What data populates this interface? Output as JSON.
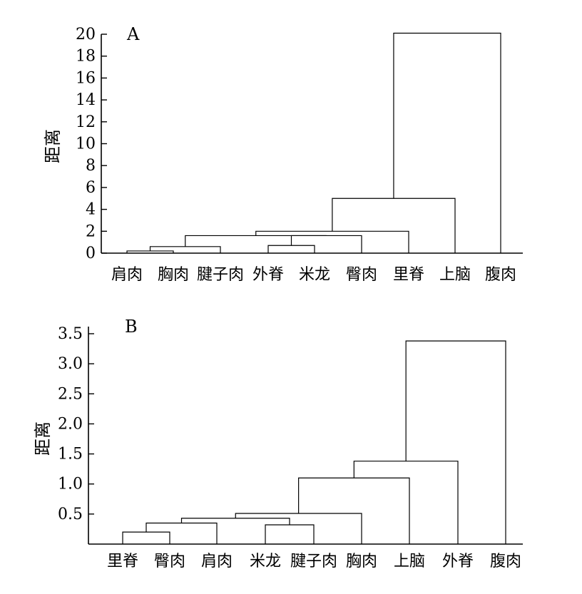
{
  "chart_data": [
    {
      "type": "dendrogram",
      "panel_label": "A",
      "ylabel": "距离",
      "ylim": [
        0,
        20
      ],
      "yticks": [
        "0",
        "2",
        "4",
        "6",
        "8",
        "10",
        "12",
        "14",
        "16",
        "18",
        "20"
      ],
      "leaves": [
        "肩肉",
        "胸肉",
        "腱子肉",
        "外脊",
        "米龙",
        "臀肉",
        "里脊",
        "上脑",
        "腹肉"
      ],
      "merges": [
        {
          "left": 0,
          "right": 1,
          "height": 0.2
        },
        {
          "left": 9,
          "right": 2,
          "height": 0.6
        },
        {
          "left": 3,
          "right": 4,
          "height": 0.7
        },
        {
          "left": 11,
          "right": 5,
          "height": 1.6
        },
        {
          "left": 10,
          "right": 12,
          "height": 1.6
        },
        {
          "left": 13,
          "right": 6,
          "height": 2.0
        },
        {
          "left": 14,
          "right": 7,
          "height": 5.0
        },
        {
          "left": 15,
          "right": 8,
          "height": 20.1
        }
      ]
    },
    {
      "type": "dendrogram",
      "panel_label": "B",
      "ylabel": "距离",
      "ylim": [
        0,
        3.5
      ],
      "yticks": [
        "0.5",
        "1.0",
        "1.5",
        "2.0",
        "2.5",
        "3.0",
        "3.5"
      ],
      "leaves": [
        "里脊",
        "臀肉",
        "肩肉",
        "米龙",
        "腱子肉",
        "胸肉",
        "上脑",
        "外脊",
        "腹肉"
      ],
      "merges": [
        {
          "left": 0,
          "right": 1,
          "height": 0.2
        },
        {
          "left": 9,
          "right": 2,
          "height": 0.35
        },
        {
          "left": 3,
          "right": 4,
          "height": 0.32
        },
        {
          "left": 10,
          "right": 11,
          "height": 0.43
        },
        {
          "left": 12,
          "right": 5,
          "height": 0.51
        },
        {
          "left": 13,
          "right": 6,
          "height": 1.1
        },
        {
          "left": 14,
          "right": 7,
          "height": 1.38
        },
        {
          "left": 15,
          "right": 8,
          "height": 3.38
        }
      ]
    }
  ]
}
